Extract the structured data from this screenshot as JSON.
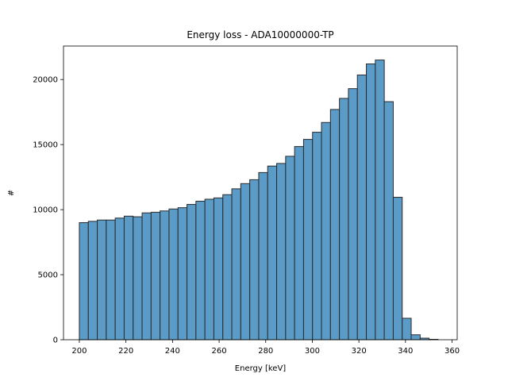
{
  "chart_data": {
    "type": "bar",
    "title": "Energy loss - ADA10000000-TP",
    "xlabel": "Energy [keV]",
    "ylabel": "#",
    "xlim": [
      193.2,
      362.2
    ],
    "ylim": [
      0,
      22575
    ],
    "xticks": [
      200,
      220,
      240,
      260,
      280,
      300,
      320,
      340,
      360
    ],
    "yticks": [
      0,
      5000,
      10000,
      15000,
      20000
    ],
    "bar_color": "#5b9bc8",
    "edge_color": "#2b2b2b",
    "bins": [
      {
        "x0": 200.0,
        "x1": 203.85,
        "value": 9000
      },
      {
        "x0": 203.85,
        "x1": 207.7,
        "value": 9100
      },
      {
        "x0": 207.7,
        "x1": 211.55,
        "value": 9200
      },
      {
        "x0": 211.55,
        "x1": 215.4,
        "value": 9200
      },
      {
        "x0": 215.4,
        "x1": 219.25,
        "value": 9350
      },
      {
        "x0": 219.25,
        "x1": 223.1,
        "value": 9500
      },
      {
        "x0": 223.1,
        "x1": 226.95,
        "value": 9450
      },
      {
        "x0": 226.95,
        "x1": 230.8,
        "value": 9750
      },
      {
        "x0": 230.8,
        "x1": 234.65,
        "value": 9800
      },
      {
        "x0": 234.65,
        "x1": 238.5,
        "value": 9900
      },
      {
        "x0": 238.5,
        "x1": 242.35,
        "value": 10050
      },
      {
        "x0": 242.35,
        "x1": 246.2,
        "value": 10150
      },
      {
        "x0": 246.2,
        "x1": 250.05,
        "value": 10400
      },
      {
        "x0": 250.05,
        "x1": 253.9,
        "value": 10650
      },
      {
        "x0": 253.9,
        "x1": 257.75,
        "value": 10800
      },
      {
        "x0": 257.75,
        "x1": 261.6,
        "value": 10900
      },
      {
        "x0": 261.6,
        "x1": 265.45,
        "value": 11150
      },
      {
        "x0": 265.45,
        "x1": 269.3,
        "value": 11600
      },
      {
        "x0": 269.3,
        "x1": 273.15,
        "value": 12000
      },
      {
        "x0": 273.15,
        "x1": 277.0,
        "value": 12300
      },
      {
        "x0": 277.0,
        "x1": 280.85,
        "value": 12850
      },
      {
        "x0": 280.85,
        "x1": 284.7,
        "value": 13350
      },
      {
        "x0": 284.7,
        "x1": 288.55,
        "value": 13550
      },
      {
        "x0": 288.55,
        "x1": 292.4,
        "value": 14100
      },
      {
        "x0": 292.4,
        "x1": 296.25,
        "value": 14850
      },
      {
        "x0": 296.25,
        "x1": 300.1,
        "value": 15400
      },
      {
        "x0": 300.1,
        "x1": 303.95,
        "value": 15950
      },
      {
        "x0": 303.95,
        "x1": 307.8,
        "value": 16700
      },
      {
        "x0": 307.8,
        "x1": 311.65,
        "value": 17700
      },
      {
        "x0": 311.65,
        "x1": 315.5,
        "value": 18550
      },
      {
        "x0": 315.5,
        "x1": 319.35,
        "value": 19300
      },
      {
        "x0": 319.35,
        "x1": 323.2,
        "value": 20350
      },
      {
        "x0": 323.2,
        "x1": 327.05,
        "value": 21200
      },
      {
        "x0": 327.05,
        "x1": 330.9,
        "value": 21500
      },
      {
        "x0": 330.9,
        "x1": 334.75,
        "value": 18300
      },
      {
        "x0": 334.75,
        "x1": 338.6,
        "value": 10950
      },
      {
        "x0": 338.6,
        "x1": 342.45,
        "value": 1650
      },
      {
        "x0": 342.45,
        "x1": 346.3,
        "value": 380
      },
      {
        "x0": 346.3,
        "x1": 350.15,
        "value": 120
      },
      {
        "x0": 350.15,
        "x1": 354.0,
        "value": 30
      }
    ]
  }
}
